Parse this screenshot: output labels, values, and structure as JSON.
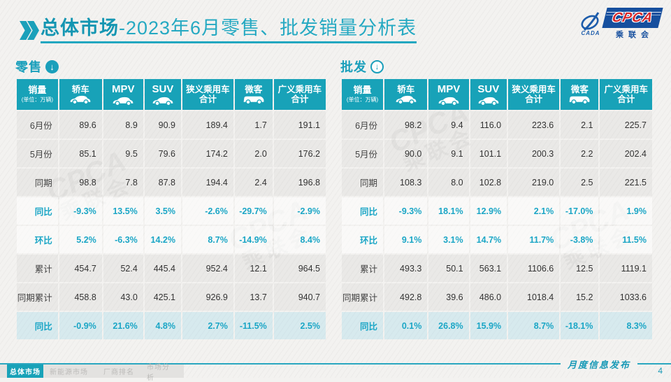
{
  "title": {
    "bold": "总体市场",
    "rest": "-2023年6月零售、批发销量分析表"
  },
  "logo": {
    "cpca": "CPCA",
    "cn": "乘联会",
    "cada": "CADA"
  },
  "tables": [
    {
      "section": "零售",
      "icon": "circle-down-filled",
      "unit_main": "销量",
      "unit_sub": "(单位：万辆)",
      "columns": [
        {
          "label": "轿车",
          "icon": "car",
          "latin": false
        },
        {
          "label": "MPV",
          "icon": "car",
          "latin": true
        },
        {
          "label": "SUV",
          "icon": "car",
          "latin": true
        },
        {
          "label": "狭义乘用车",
          "label2": "合计",
          "latin": false
        },
        {
          "label": "微客",
          "icon": "van",
          "latin": false
        },
        {
          "label": "广义乘用车",
          "label2": "合计",
          "latin": false
        }
      ],
      "rows": [
        {
          "label": "6月份",
          "type": "num",
          "values": [
            "89.6",
            "8.9",
            "90.9",
            "189.4",
            "1.7",
            "191.1"
          ]
        },
        {
          "label": "5月份",
          "type": "num",
          "values": [
            "85.1",
            "9.5",
            "79.6",
            "174.2",
            "2.0",
            "176.2"
          ]
        },
        {
          "label": "同期",
          "type": "num",
          "values": [
            "98.8",
            "7.8",
            "87.8",
            "194.4",
            "2.4",
            "196.8"
          ]
        },
        {
          "label": "同比",
          "type": "pct",
          "values": [
            "-9.3%",
            "13.5%",
            "3.5%",
            "-2.6%",
            "-29.7%",
            "-2.9%"
          ]
        },
        {
          "label": "环比",
          "type": "pct",
          "values": [
            "5.2%",
            "-6.3%",
            "14.2%",
            "8.7%",
            "-14.9%",
            "8.4%"
          ]
        },
        {
          "label": "累计",
          "type": "num",
          "values": [
            "454.7",
            "52.4",
            "445.4",
            "952.4",
            "12.1",
            "964.5"
          ]
        },
        {
          "label": "同期累计",
          "type": "num",
          "values": [
            "458.8",
            "43.0",
            "425.1",
            "926.9",
            "13.7",
            "940.7"
          ]
        },
        {
          "label": "同比",
          "type": "hl",
          "values": [
            "-0.9%",
            "21.6%",
            "4.8%",
            "2.7%",
            "-11.5%",
            "2.5%"
          ]
        }
      ]
    },
    {
      "section": "批发",
      "icon": "circle-down-outline",
      "unit_main": "销量",
      "unit_sub": "(单位：万辆)",
      "columns": [
        {
          "label": "轿车",
          "icon": "car",
          "latin": false
        },
        {
          "label": "MPV",
          "icon": "car",
          "latin": true
        },
        {
          "label": "SUV",
          "icon": "car",
          "latin": true
        },
        {
          "label": "狭义乘用车",
          "label2": "合计",
          "latin": false
        },
        {
          "label": "微客",
          "icon": "van",
          "latin": false
        },
        {
          "label": "广义乘用车",
          "label2": "合计",
          "latin": false
        }
      ],
      "rows": [
        {
          "label": "6月份",
          "type": "num",
          "values": [
            "98.2",
            "9.4",
            "116.0",
            "223.6",
            "2.1",
            "225.7"
          ]
        },
        {
          "label": "5月份",
          "type": "num",
          "values": [
            "90.0",
            "9.1",
            "101.1",
            "200.3",
            "2.2",
            "202.4"
          ]
        },
        {
          "label": "同期",
          "type": "num",
          "values": [
            "108.3",
            "8.0",
            "102.8",
            "219.0",
            "2.5",
            "221.5"
          ]
        },
        {
          "label": "同比",
          "type": "pct",
          "values": [
            "-9.3%",
            "18.1%",
            "12.9%",
            "2.1%",
            "-17.0%",
            "1.9%"
          ]
        },
        {
          "label": "环比",
          "type": "pct",
          "values": [
            "9.1%",
            "3.1%",
            "14.7%",
            "11.7%",
            "-3.8%",
            "11.5%"
          ]
        },
        {
          "label": "累计",
          "type": "num",
          "values": [
            "493.3",
            "50.1",
            "563.1",
            "1106.6",
            "12.5",
            "1119.1"
          ]
        },
        {
          "label": "同期累计",
          "type": "num",
          "values": [
            "492.8",
            "39.6",
            "486.0",
            "1018.4",
            "15.2",
            "1033.6"
          ]
        },
        {
          "label": "同比",
          "type": "hl",
          "values": [
            "0.1%",
            "26.8%",
            "15.9%",
            "8.7%",
            "-18.1%",
            "8.3%"
          ]
        }
      ]
    }
  ],
  "footer": {
    "tabs": [
      {
        "label": "总体市场",
        "active": true
      },
      {
        "label": "新能源市场",
        "active": false
      },
      {
        "label": "厂商排名",
        "active": false
      },
      {
        "label": "市场分析",
        "active": false
      }
    ],
    "note": "月度信息发布",
    "page": "4"
  },
  "colors": {
    "accent": "#18a2b8",
    "highlight_text": "#1ba6c6",
    "logo_blue": "#164f9e",
    "logo_red": "#d7282a"
  }
}
